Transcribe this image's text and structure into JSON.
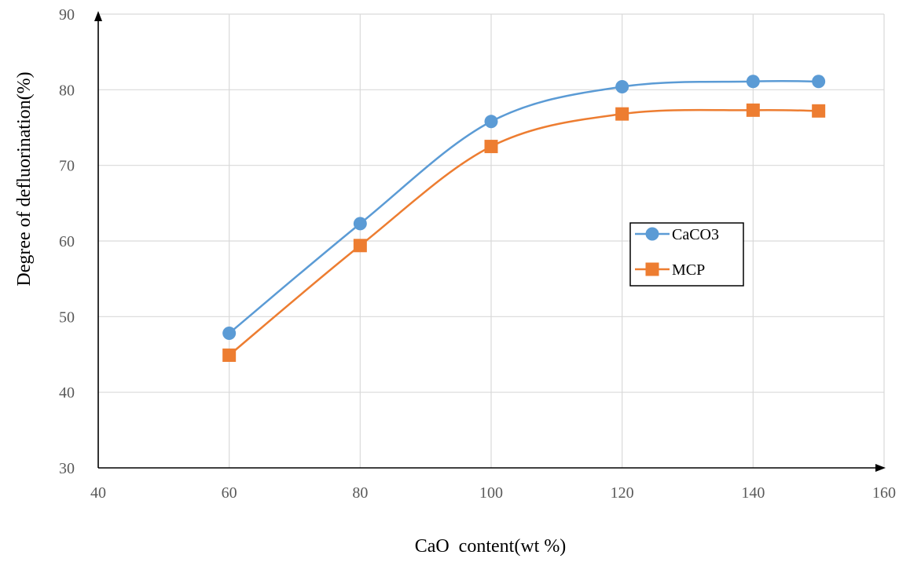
{
  "chart_data": {
    "type": "line",
    "title": "",
    "xlabel": "CaO  content(wt %)",
    "ylabel": "Degree of defluorination(%)",
    "xlim": [
      40,
      160
    ],
    "ylim": [
      30,
      90
    ],
    "xticks": [
      40,
      60,
      80,
      100,
      120,
      140,
      160
    ],
    "yticks": [
      30,
      40,
      50,
      60,
      70,
      80,
      90
    ],
    "x": [
      60,
      80,
      100,
      120,
      140,
      150
    ],
    "grid": true,
    "legend": {
      "position": "right",
      "entries": [
        "CaCO3",
        "MCP"
      ]
    },
    "series": [
      {
        "name": "CaCO3",
        "marker": "circle",
        "color": "#5B9BD5",
        "values": [
          47.8,
          62.3,
          75.8,
          80.4,
          81.1,
          81.1
        ]
      },
      {
        "name": "MCP",
        "marker": "square",
        "color": "#ED7D31",
        "values": [
          44.9,
          59.4,
          72.5,
          76.8,
          77.3,
          77.2
        ]
      }
    ]
  }
}
